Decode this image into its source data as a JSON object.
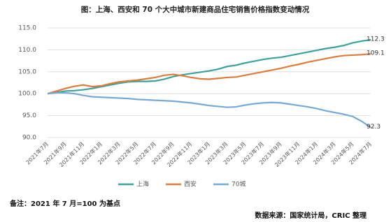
{
  "chart_data": {
    "type": "line",
    "title": "图：上海、西安和 70 个大中城市新建商品住宅销售价格指数变动情况",
    "note": "备注：2021 年 7 月=100 为基点",
    "source": "数据来源：国家统计局，CRIC 整理",
    "categories": [
      "2021年7月",
      null,
      "2021年9月",
      null,
      "2021年11月",
      null,
      "2022年1月",
      null,
      "2022年3月",
      null,
      "2022年5月",
      null,
      "2022年7月",
      null,
      "2022年9月",
      null,
      "2022年11月",
      null,
      "2023年1月",
      null,
      "2023年3月",
      null,
      "2023年5月",
      null,
      "2023年7月",
      null,
      "2023年9月",
      null,
      "2023年11月",
      null,
      "2024年1月",
      null,
      "2024年3月",
      null,
      "2024年5月",
      null,
      "2024年7月"
    ],
    "series": [
      {
        "name": "上海",
        "color": "#3aa39a",
        "values": [
          100,
          100.3,
          100.6,
          100.7,
          100.9,
          101.2,
          101.6,
          102.0,
          102.4,
          102.7,
          102.8,
          102.8,
          102.9,
          103.3,
          103.9,
          104.3,
          104.6,
          104.9,
          105.2,
          105.6,
          106.2,
          106.5,
          107.0,
          107.4,
          107.8,
          108.1,
          108.3,
          108.7,
          109.1,
          109.5,
          109.9,
          110.3,
          110.6,
          111.0,
          111.6,
          112.0,
          112.3
        ]
      },
      {
        "name": "西安",
        "color": "#e07b39",
        "values": [
          100,
          100.6,
          101.2,
          101.7,
          102.0,
          101.6,
          101.8,
          102.3,
          102.7,
          102.9,
          103.1,
          103.4,
          103.7,
          104.2,
          104.4,
          104.1,
          103.7,
          103.4,
          103.3,
          103.5,
          103.7,
          103.8,
          104.2,
          104.6,
          105.0,
          105.4,
          105.8,
          106.3,
          106.7,
          107.2,
          107.6,
          108.0,
          108.4,
          108.7,
          108.8,
          108.9,
          109.1
        ]
      },
      {
        "name": "70城",
        "color": "#74a9d8",
        "values": [
          100,
          100.2,
          100.2,
          100.0,
          99.6,
          99.3,
          99.2,
          99.1,
          99.0,
          98.9,
          98.7,
          98.6,
          98.5,
          98.4,
          98.3,
          98.1,
          97.9,
          97.6,
          97.3,
          97.1,
          96.9,
          97.0,
          97.4,
          97.7,
          97.9,
          98.0,
          97.9,
          97.6,
          97.3,
          97.0,
          96.6,
          96.1,
          95.7,
          95.3,
          94.8,
          93.7,
          92.3
        ]
      }
    ],
    "ylim": [
      90,
      115
    ],
    "yticks": [
      {
        "value": 90,
        "label": "90.0"
      },
      {
        "value": 95,
        "label": "95.0"
      },
      {
        "value": 100,
        "label": "100.0"
      },
      {
        "value": 105,
        "label": "105.0"
      },
      {
        "value": 110,
        "label": "110.0"
      },
      {
        "value": 115,
        "label": "115.0"
      }
    ],
    "grid": true
  }
}
